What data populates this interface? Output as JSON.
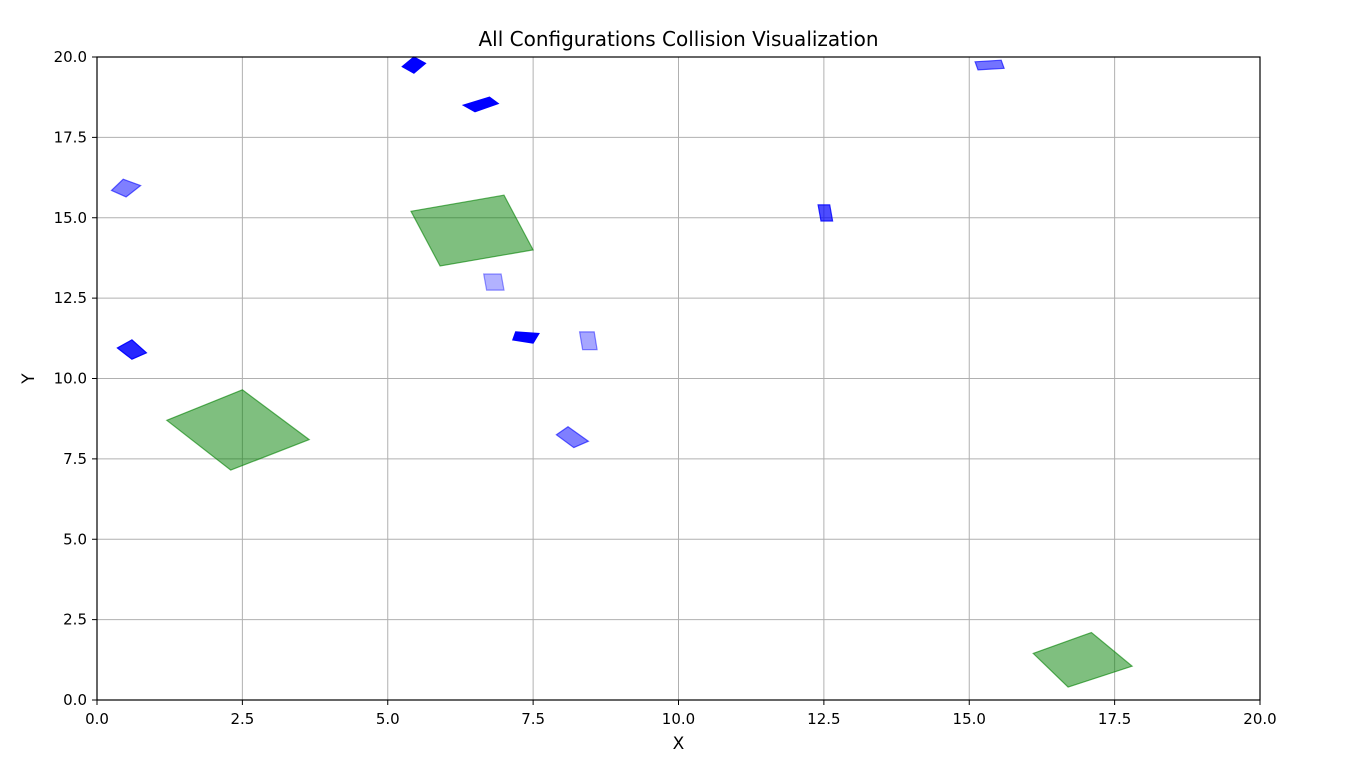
{
  "chart_data": {
    "type": "scatter",
    "title": "All Configurations Collision Visualization",
    "xlabel": "X",
    "ylabel": "Y",
    "xlim": [
      0.0,
      20.0
    ],
    "ylim": [
      0.0,
      20.0
    ],
    "xticks": [
      "0.0",
      "2.5",
      "5.0",
      "7.5",
      "10.0",
      "12.5",
      "15.0",
      "17.5",
      "20.0"
    ],
    "yticks": [
      "0.0",
      "2.5",
      "5.0",
      "7.5",
      "10.0",
      "12.5",
      "15.0",
      "17.5",
      "20.0"
    ],
    "grid": true,
    "legend": false,
    "colors": {
      "obstacle": "#008000",
      "configuration": "#0000ff"
    },
    "series": [
      {
        "kind": "obstacle",
        "polygons": [
          {
            "opacity": 0.5,
            "points": [
              [
                5.4,
                15.2
              ],
              [
                7.0,
                15.7
              ],
              [
                7.5,
                14.0
              ],
              [
                5.9,
                13.5
              ]
            ]
          },
          {
            "opacity": 0.5,
            "points": [
              [
                1.2,
                8.7
              ],
              [
                2.5,
                9.65
              ],
              [
                3.65,
                8.1
              ],
              [
                2.3,
                7.15
              ]
            ]
          },
          {
            "opacity": 0.5,
            "points": [
              [
                16.1,
                1.45
              ],
              [
                17.1,
                2.1
              ],
              [
                17.8,
                1.05
              ],
              [
                16.7,
                0.4
              ]
            ]
          }
        ]
      },
      {
        "kind": "configuration",
        "polygons": [
          {
            "opacity": 1.0,
            "points": [
              [
                5.25,
                19.7
              ],
              [
                5.45,
                20.0
              ],
              [
                5.65,
                19.8
              ],
              [
                5.45,
                19.5
              ]
            ]
          },
          {
            "opacity": 1.0,
            "points": [
              [
                6.3,
                18.5
              ],
              [
                6.75,
                18.75
              ],
              [
                6.9,
                18.55
              ],
              [
                6.5,
                18.3
              ]
            ]
          },
          {
            "opacity": 1.0,
            "points": [
              [
                7.15,
                11.2
              ],
              [
                7.2,
                11.45
              ],
              [
                7.6,
                11.4
              ],
              [
                7.5,
                11.1
              ]
            ]
          },
          {
            "opacity": 0.85,
            "points": [
              [
                0.6,
                11.2
              ],
              [
                0.35,
                10.95
              ],
              [
                0.6,
                10.6
              ],
              [
                0.85,
                10.8
              ]
            ]
          },
          {
            "opacity": 0.7,
            "points": [
              [
                12.4,
                15.4
              ],
              [
                12.6,
                15.4
              ],
              [
                12.65,
                14.9
              ],
              [
                12.45,
                14.9
              ]
            ]
          },
          {
            "opacity": 0.5,
            "points": [
              [
                0.25,
                15.85
              ],
              [
                0.45,
                16.2
              ],
              [
                0.75,
                16.0
              ],
              [
                0.5,
                15.65
              ]
            ]
          },
          {
            "opacity": 0.5,
            "points": [
              [
                7.9,
                8.25
              ],
              [
                8.1,
                8.5
              ],
              [
                8.45,
                8.05
              ],
              [
                8.2,
                7.85
              ]
            ]
          },
          {
            "opacity": 0.55,
            "points": [
              [
                15.1,
                19.85
              ],
              [
                15.55,
                19.9
              ],
              [
                15.6,
                19.65
              ],
              [
                15.15,
                19.6
              ]
            ]
          },
          {
            "opacity": 0.3,
            "points": [
              [
                6.65,
                13.25
              ],
              [
                6.95,
                13.25
              ],
              [
                7.0,
                12.75
              ],
              [
                6.7,
                12.75
              ]
            ]
          },
          {
            "opacity": 0.35,
            "points": [
              [
                8.3,
                11.45
              ],
              [
                8.55,
                11.45
              ],
              [
                8.6,
                10.9
              ],
              [
                8.35,
                10.9
              ]
            ]
          }
        ]
      }
    ]
  }
}
